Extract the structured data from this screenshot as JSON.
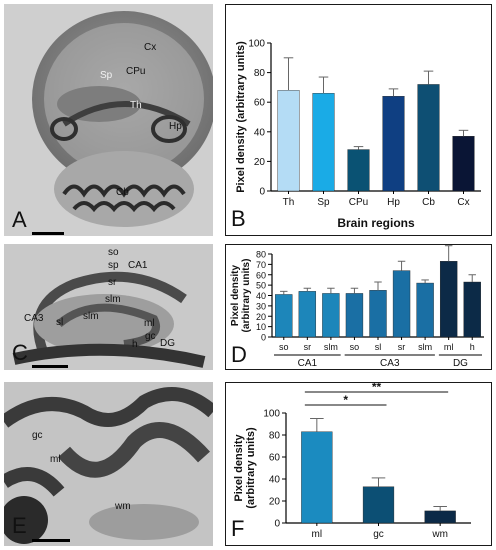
{
  "panels": {
    "A": {
      "letter": "A",
      "labels": [
        {
          "key": "cx",
          "text": "Cx"
        },
        {
          "key": "sp",
          "text": "Sp"
        },
        {
          "key": "cpu",
          "text": "CPu"
        },
        {
          "key": "th",
          "text": "Th"
        },
        {
          "key": "hp",
          "text": "Hp"
        },
        {
          "key": "cb",
          "text": "Cb"
        }
      ]
    },
    "C": {
      "letter": "C",
      "labels": [
        {
          "key": "so",
          "text": "so"
        },
        {
          "key": "sp",
          "text": "sp"
        },
        {
          "key": "ca1",
          "text": "CA1"
        },
        {
          "key": "sr",
          "text": "sr"
        },
        {
          "key": "slm_top",
          "text": "slm"
        },
        {
          "key": "ca3",
          "text": "CA3"
        },
        {
          "key": "sl",
          "text": "sl"
        },
        {
          "key": "slm_mid",
          "text": "slm"
        },
        {
          "key": "ml",
          "text": "ml"
        },
        {
          "key": "gc",
          "text": "gc"
        },
        {
          "key": "h",
          "text": "h"
        },
        {
          "key": "dg",
          "text": "DG"
        }
      ]
    },
    "E": {
      "letter": "E",
      "labels": [
        {
          "key": "gc",
          "text": "gc"
        },
        {
          "key": "ml",
          "text": "ml"
        },
        {
          "key": "wm",
          "text": "wm"
        }
      ]
    }
  },
  "chart_data": [
    {
      "panel": "B",
      "type": "bar",
      "ylabel": "Pixel density (arbitrary units)",
      "xlabel": "Brain regions",
      "ylim": [
        0,
        100
      ],
      "yticks": [
        0,
        20,
        40,
        60,
        80,
        100
      ],
      "categories": [
        "Th",
        "Sp",
        "CPu",
        "Hp",
        "Cb",
        "Cx"
      ],
      "values": [
        68,
        66,
        28,
        64,
        72,
        37
      ],
      "errors": [
        22,
        11,
        2,
        5,
        9,
        4
      ],
      "colors": [
        "#b4dcf5",
        "#1aabe6",
        "#0a5273",
        "#0f3f82",
        "#0e4f73",
        "#0a1535"
      ]
    },
    {
      "panel": "D",
      "type": "bar",
      "ylabel": "Pixel density (arbitrary units)",
      "ylim": [
        0,
        80
      ],
      "yticks": [
        0,
        10,
        20,
        30,
        40,
        50,
        60,
        70,
        80
      ],
      "categories": [
        "so",
        "sr",
        "slm",
        "so",
        "sl",
        "sr",
        "slm",
        "ml",
        "h"
      ],
      "groups": [
        {
          "name": "CA1",
          "count": 3
        },
        {
          "name": "CA3",
          "count": 4
        },
        {
          "name": "DG",
          "count": 2
        }
      ],
      "values": [
        41,
        44,
        42,
        42,
        45,
        64,
        52,
        73,
        53
      ],
      "errors": [
        3,
        3,
        5,
        5,
        8,
        9,
        3,
        15,
        7
      ],
      "colors": [
        "#1d86ba",
        "#1d86ba",
        "#1d86ba",
        "#1a6fa4",
        "#1a6fa4",
        "#1a6fa4",
        "#1a6fa4",
        "#0c2a47",
        "#0c2a47"
      ]
    },
    {
      "panel": "F",
      "type": "bar",
      "ylabel": "Pixel density (arbitrary units)",
      "ylim": [
        0,
        100
      ],
      "yticks": [
        0,
        20,
        40,
        60,
        80,
        100
      ],
      "categories": [
        "ml",
        "gc",
        "wm"
      ],
      "values": [
        83,
        33,
        11
      ],
      "errors": [
        12,
        8,
        4
      ],
      "colors": [
        "#1b8bc0",
        "#0c4f74",
        "#0c2a47"
      ],
      "significance": [
        {
          "from": 0,
          "to": 1,
          "label": "*"
        },
        {
          "from": 0,
          "to": 2,
          "label": "**"
        }
      ]
    }
  ],
  "letters": {
    "B": "B",
    "D": "D",
    "F": "F"
  }
}
